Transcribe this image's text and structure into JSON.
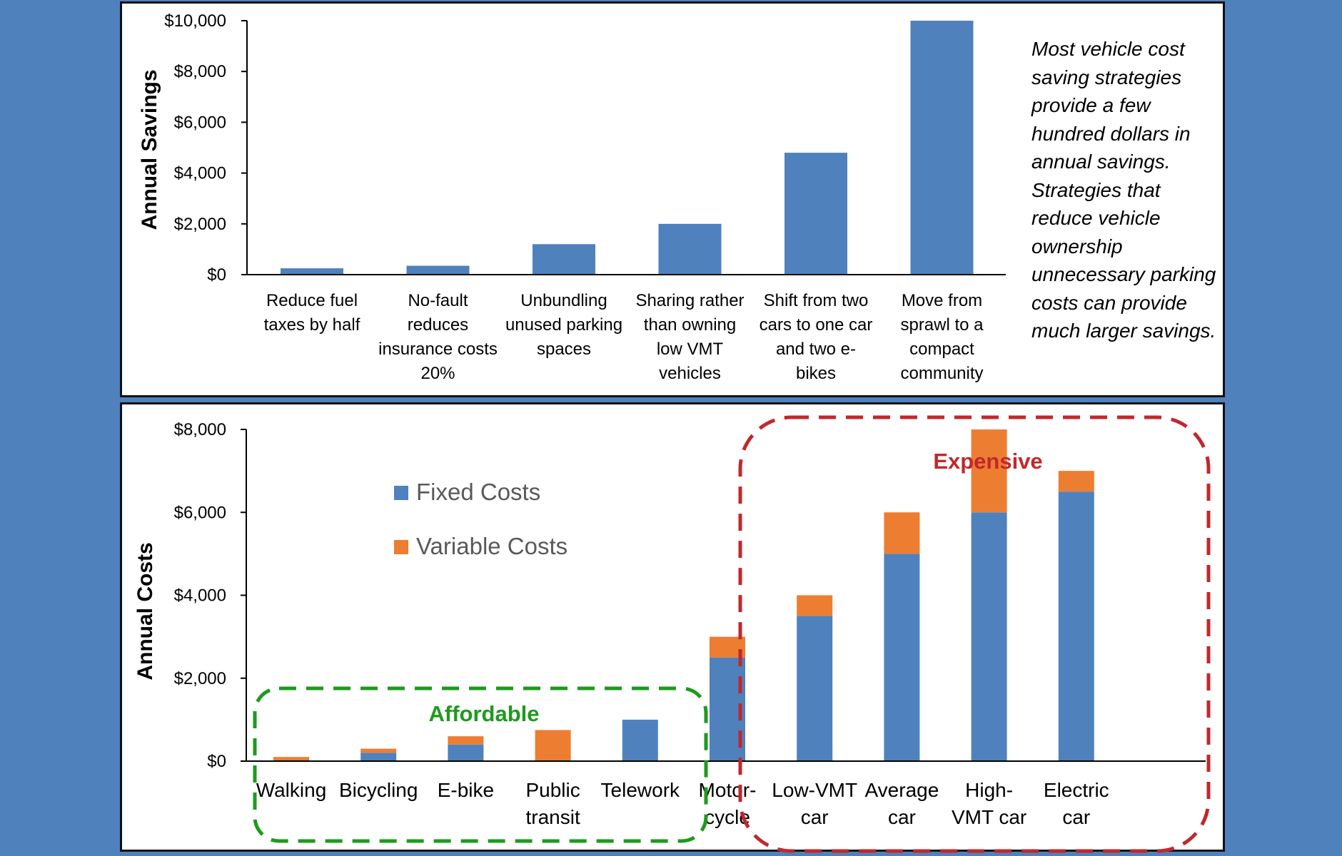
{
  "colors": {
    "background": "#4f81bd",
    "fixed": "#4f81bd",
    "variable": "#ed7d31",
    "affordable": "#1e9a1e",
    "expensive": "#c0282d"
  },
  "chart_data": [
    {
      "type": "bar",
      "title": "",
      "xlabel": "",
      "ylabel": "Annual Savings",
      "ylim": [
        0,
        10000
      ],
      "yticks": [
        "$0",
        "$2,000",
        "$4,000",
        "$6,000",
        "$8,000",
        "$10,000"
      ],
      "categories": [
        [
          "Reduce fuel",
          "taxes by half"
        ],
        [
          "No-fault",
          "reduces",
          "insurance costs",
          "20%"
        ],
        [
          "Unbundling",
          "unused parking",
          "spaces"
        ],
        [
          "Sharing rather",
          "than owning",
          "low VMT",
          "vehicles"
        ],
        [
          "Shift from two",
          "cars to one car",
          "and two e-",
          "bikes"
        ],
        [
          "Move from",
          "sprawl to a",
          "compact",
          "community"
        ]
      ],
      "values": [
        250,
        350,
        1200,
        2000,
        4800,
        10000
      ],
      "grid": false,
      "annotation": "Most vehicle cost saving strategies provide a few hundred dollars in annual savings. Strategies that reduce vehicle ownership unnecessary parking costs can provide much larger savings."
    },
    {
      "type": "bar",
      "stacked": true,
      "title": "",
      "xlabel": "",
      "ylabel": "Annual Costs",
      "ylim": [
        0,
        8000
      ],
      "yticks": [
        "$0",
        "$2,000",
        "$4,000",
        "$6,000",
        "$8,000"
      ],
      "categories": [
        [
          "Walking"
        ],
        [
          "Bicycling"
        ],
        [
          "E-bike"
        ],
        [
          "Public",
          "transit"
        ],
        [
          "Telework"
        ],
        [
          "Motor-",
          "cycle"
        ],
        [
          "Low-VMT",
          "car"
        ],
        [
          "Average",
          "car"
        ],
        [
          "High-",
          "VMT car"
        ],
        [
          "Electric",
          "car"
        ]
      ],
      "series": [
        {
          "name": "Fixed Costs",
          "values": [
            0,
            200,
            400,
            0,
            1000,
            2500,
            3500,
            5000,
            6000,
            6500
          ]
        },
        {
          "name": "Variable Costs",
          "values": [
            100,
            100,
            200,
            750,
            0,
            500,
            500,
            1000,
            2000,
            500
          ]
        }
      ],
      "legend": "upper-left",
      "grid": false,
      "groups": [
        {
          "label": "Affordable"
        },
        {
          "label": "Expensive"
        }
      ]
    }
  ]
}
